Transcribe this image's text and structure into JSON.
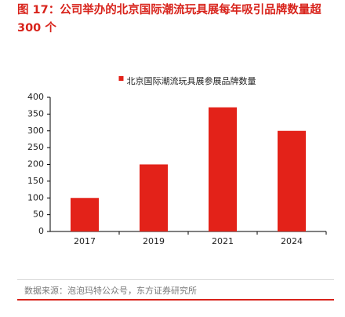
{
  "title": "图 17：公司举办的北京国际潮流玩具展每年吸引品牌数量超300 个",
  "source": "数据来源：泡泡玛特公众号，东方证券研究所",
  "colors": {
    "accent": "#d8231b",
    "bar": "#e32219"
  },
  "chart_data": {
    "type": "bar",
    "categories": [
      "2017",
      "2019",
      "2021",
      "2024"
    ],
    "series": [
      {
        "name": "北京国际潮流玩具展参展品牌数量",
        "values": [
          100,
          200,
          370,
          300
        ]
      }
    ],
    "ylim": [
      0,
      400
    ],
    "yticks": [
      "0",
      "50",
      "100",
      "150",
      "200",
      "250",
      "300",
      "350",
      "400"
    ],
    "legend": "top-center",
    "grid": false
  }
}
